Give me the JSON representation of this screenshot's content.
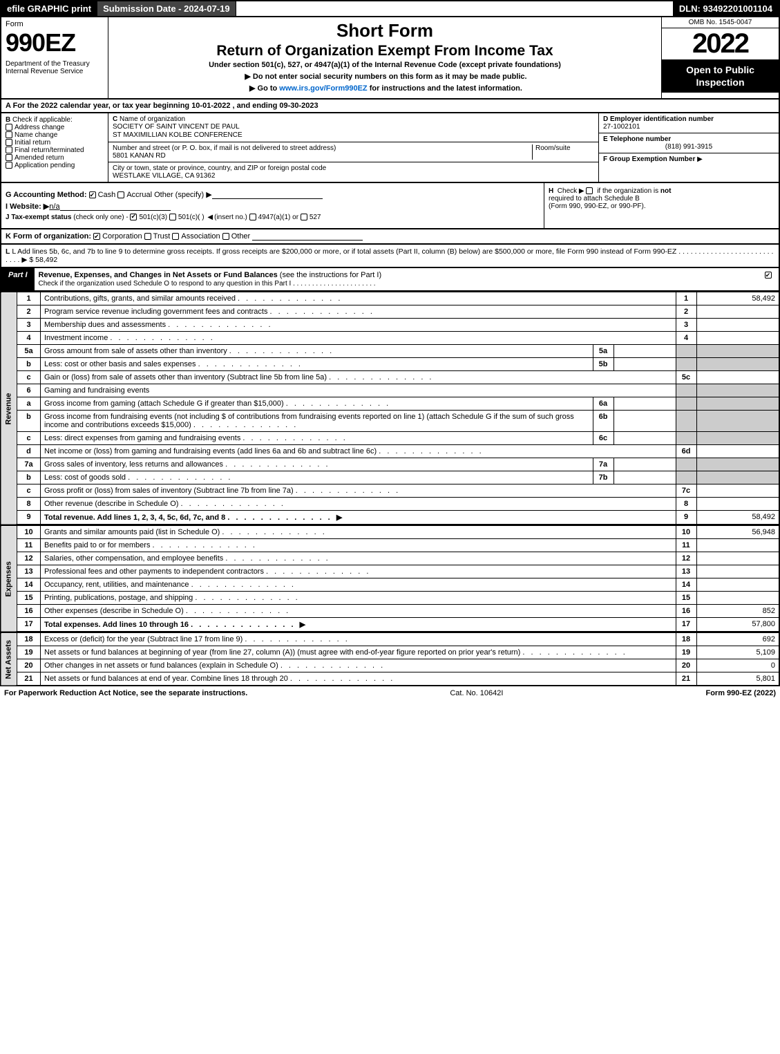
{
  "topbar": {
    "efile": "efile GRAPHIC print",
    "submission": "Submission Date - 2024-07-19",
    "dln": "DLN: 93492201001104"
  },
  "header": {
    "form_lbl": "Form",
    "form_no": "990EZ",
    "dept": "Department of the Treasury\nInternal Revenue Service",
    "short": "Short Form",
    "title": "Return of Organization Exempt From Income Tax",
    "under": "Under section 501(c), 527, or 4947(a)(1) of the Internal Revenue Code (except private foundations)",
    "warn": "Do not enter social security numbers on this form as it may be made public.",
    "goto_pre": "Go to ",
    "goto_link": "www.irs.gov/Form990EZ",
    "goto_post": " for instructions and the latest information.",
    "omb": "OMB No. 1545-0047",
    "year": "2022",
    "open": "Open to Public Inspection"
  },
  "A": {
    "text": "A  For the 2022 calendar year, or tax year beginning 10-01-2022 , and ending 09-30-2023"
  },
  "B": {
    "lbl": "B",
    "chk": "Check if applicable:",
    "opts": [
      "Address change",
      "Name change",
      "Initial return",
      "Final return/terminated",
      "Amended return",
      "Application pending"
    ]
  },
  "C": {
    "lbl": "C",
    "name_lbl": "Name of organization",
    "name": "SOCIETY OF SAINT VINCENT DE PAUL\nST MAXIMILLIAN KOLBE CONFERENCE",
    "street_lbl": "Number and street (or P. O. box, if mail is not delivered to street address)",
    "room_lbl": "Room/suite",
    "street": "5801 KANAN RD",
    "city_lbl": "City or town, state or province, country, and ZIP or foreign postal code",
    "city": "WESTLAKE VILLAGE, CA  91362"
  },
  "D": {
    "lbl": "D Employer identification number",
    "val": "27-1002101"
  },
  "E": {
    "lbl": "E Telephone number",
    "val": "(818) 991-3915"
  },
  "F": {
    "lbl": "F Group Exemption Number",
    "arrow": "▶"
  },
  "G": {
    "lbl": "G Accounting Method:",
    "cash": "Cash",
    "accrual": "Accrual",
    "other": "Other (specify)"
  },
  "H": {
    "lbl": "H",
    "txt": "Check ▶",
    "chk_txt": "if the organization is",
    "not": "not",
    "req": "required to attach Schedule B",
    "forms": "(Form 990, 990-EZ, or 990-PF)."
  },
  "I": {
    "lbl": "I Website: ▶",
    "val": "n/a"
  },
  "J": {
    "lbl": "J Tax-exempt status",
    "sub": "(check only one) -",
    "o1": "501(c)(3)",
    "o2": "501(c)(  )",
    "ins": "(insert no.)",
    "o3": "4947(a)(1) or",
    "o4": "527"
  },
  "K": {
    "lbl": "K Form of organization:",
    "o1": "Corporation",
    "o2": "Trust",
    "o3": "Association",
    "o4": "Other"
  },
  "L": {
    "txt": "L Add lines 5b, 6c, and 7b to line 9 to determine gross receipts. If gross receipts are $200,000 or more, or if total assets (Part II, column (B) below) are $500,000 or more, file Form 990 instead of Form 990-EZ",
    "dots": ".  .  .  .  .  .  .  .  .  .  .  .  .  .  .  .  .  .  .  .  .  .  .  .  .  .  .  .",
    "arrow": "▶",
    "amt": "$ 58,492"
  },
  "partI": {
    "lbl": "Part I",
    "title": "Revenue, Expenses, and Changes in Net Assets or Fund Balances",
    "hint": "(see the instructions for Part I)",
    "check": "Check if the organization used Schedule O to respond to any question in this Part I"
  },
  "sidebars": {
    "rev": "Revenue",
    "exp": "Expenses",
    "na": "Net Assets"
  },
  "rows": [
    {
      "n": "1",
      "t": "Contributions, gifts, grants, and similar amounts received",
      "c": "1",
      "a": "58,492"
    },
    {
      "n": "2",
      "t": "Program service revenue including government fees and contracts",
      "c": "2",
      "a": ""
    },
    {
      "n": "3",
      "t": "Membership dues and assessments",
      "c": "3",
      "a": ""
    },
    {
      "n": "4",
      "t": "Investment income",
      "c": "4",
      "a": ""
    },
    {
      "n": "5a",
      "t": "Gross amount from sale of assets other than inventory",
      "sub": "5a",
      "sa": ""
    },
    {
      "n": "b",
      "t": "Less: cost or other basis and sales expenses",
      "sub": "5b",
      "sa": ""
    },
    {
      "n": "c",
      "t": "Gain or (loss) from sale of assets other than inventory (Subtract line 5b from line 5a)",
      "c": "5c",
      "a": ""
    },
    {
      "n": "6",
      "t": "Gaming and fundraising events"
    },
    {
      "n": "a",
      "t": "Gross income from gaming (attach Schedule G if greater than $15,000)",
      "sub": "6a",
      "sa": ""
    },
    {
      "n": "b",
      "t": "Gross income from fundraising events (not including $                    of contributions from fundraising events reported on line 1) (attach Schedule G if the sum of such gross income and contributions exceeds $15,000)",
      "sub": "6b",
      "sa": ""
    },
    {
      "n": "c",
      "t": "Less: direct expenses from gaming and fundraising events",
      "sub": "6c",
      "sa": ""
    },
    {
      "n": "d",
      "t": "Net income or (loss) from gaming and fundraising events (add lines 6a and 6b and subtract line 6c)",
      "c": "6d",
      "a": ""
    },
    {
      "n": "7a",
      "t": "Gross sales of inventory, less returns and allowances",
      "sub": "7a",
      "sa": ""
    },
    {
      "n": "b",
      "t": "Less: cost of goods sold",
      "sub": "7b",
      "sa": ""
    },
    {
      "n": "c",
      "t": "Gross profit or (loss) from sales of inventory (Subtract line 7b from line 7a)",
      "c": "7c",
      "a": ""
    },
    {
      "n": "8",
      "t": "Other revenue (describe in Schedule O)",
      "c": "8",
      "a": ""
    },
    {
      "n": "9",
      "t": "Total revenue. Add lines 1, 2, 3, 4, 5c, 6d, 7c, and 8",
      "c": "9",
      "a": "58,492",
      "bold": true,
      "arrow": true
    }
  ],
  "exp": [
    {
      "n": "10",
      "t": "Grants and similar amounts paid (list in Schedule O)",
      "c": "10",
      "a": "56,948"
    },
    {
      "n": "11",
      "t": "Benefits paid to or for members",
      "c": "11",
      "a": ""
    },
    {
      "n": "12",
      "t": "Salaries, other compensation, and employee benefits",
      "c": "12",
      "a": ""
    },
    {
      "n": "13",
      "t": "Professional fees and other payments to independent contractors",
      "c": "13",
      "a": ""
    },
    {
      "n": "14",
      "t": "Occupancy, rent, utilities, and maintenance",
      "c": "14",
      "a": ""
    },
    {
      "n": "15",
      "t": "Printing, publications, postage, and shipping",
      "c": "15",
      "a": ""
    },
    {
      "n": "16",
      "t": "Other expenses (describe in Schedule O)",
      "c": "16",
      "a": "852"
    },
    {
      "n": "17",
      "t": "Total expenses. Add lines 10 through 16",
      "c": "17",
      "a": "57,800",
      "bold": true,
      "arrow": true
    }
  ],
  "na": [
    {
      "n": "18",
      "t": "Excess or (deficit) for the year (Subtract line 17 from line 9)",
      "c": "18",
      "a": "692"
    },
    {
      "n": "19",
      "t": "Net assets or fund balances at beginning of year (from line 27, column (A)) (must agree with end-of-year figure reported on prior year's return)",
      "c": "19",
      "a": "5,109"
    },
    {
      "n": "20",
      "t": "Other changes in net assets or fund balances (explain in Schedule O)",
      "c": "20",
      "a": "0"
    },
    {
      "n": "21",
      "t": "Net assets or fund balances at end of year. Combine lines 18 through 20",
      "c": "21",
      "a": "5,801"
    }
  ],
  "footer": {
    "l": "For Paperwork Reduction Act Notice, see the separate instructions.",
    "c": "Cat. No. 10642I",
    "r": "Form 990-EZ (2022)"
  }
}
